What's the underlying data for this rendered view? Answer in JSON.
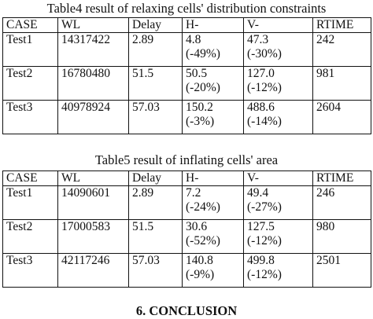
{
  "table4": {
    "caption": "Table4 result of relaxing cells' distribution constraints",
    "headers": [
      "CASE",
      "WL",
      "Delay",
      "H-",
      "V-",
      "RTIME"
    ],
    "rows": [
      {
        "case": "Test1",
        "wl": "14317422",
        "delay": "2.89",
        "h": "4.8",
        "h_pct": "(-49%)",
        "v": "47.3",
        "v_pct": "(-30%)",
        "rtime": "242"
      },
      {
        "case": "Test2",
        "wl": "16780480",
        "delay": "51.5",
        "h": "50.5",
        "h_pct": "(-20%)",
        "v": "127.0",
        "v_pct": "(-12%)",
        "rtime": "981"
      },
      {
        "case": "Test3",
        "wl": "40978924",
        "delay": "57.03",
        "h": "150.2",
        "h_pct": "(-3%)",
        "v": "488.6",
        "v_pct": "(-14%)",
        "rtime": "2604"
      }
    ]
  },
  "table5": {
    "caption": "Table5 result of inflating cells' area",
    "headers": [
      "CASE",
      "WL",
      "Delay",
      "H-",
      "V-",
      "RTIME"
    ],
    "rows": [
      {
        "case": "Test1",
        "wl": "14090601",
        "delay": "2.89",
        "h": "7.2",
        "h_pct": "(-24%)",
        "v": "49.4",
        "v_pct": "(-27%)",
        "rtime": "246"
      },
      {
        "case": "Test2",
        "wl": "17000583",
        "delay": "51.5",
        "h": "30.6",
        "h_pct": "(-52%)",
        "v": "127.5",
        "v_pct": "(-12%)",
        "rtime": "980"
      },
      {
        "case": "Test3",
        "wl": "42117246",
        "delay": "57.03",
        "h": "140.8",
        "h_pct": "(-9%)",
        "v": "499.8",
        "v_pct": "(-12%)",
        "rtime": "2501"
      }
    ]
  },
  "section_heading": "6. CONCLUSION"
}
